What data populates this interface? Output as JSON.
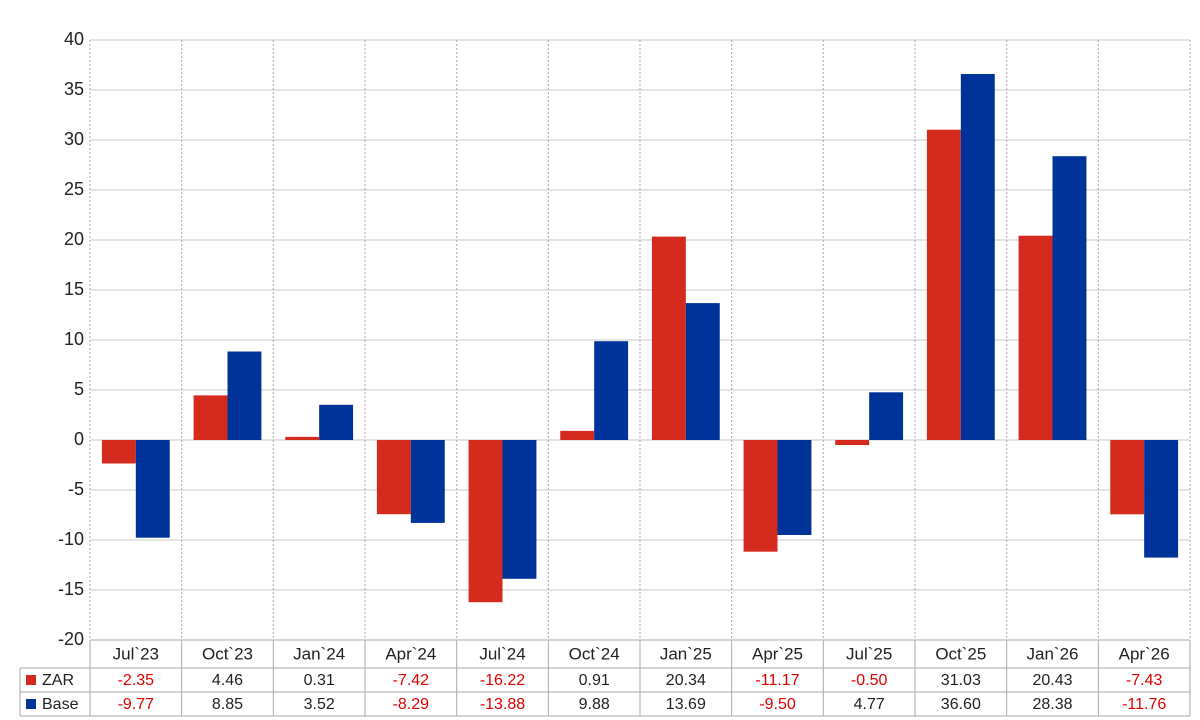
{
  "chart_data": {
    "type": "bar",
    "categories": [
      "Jul`23",
      "Oct`23",
      "Jan`24",
      "Apr`24",
      "Jul`24",
      "Oct`24",
      "Jan`25",
      "Apr`25",
      "Jul`25",
      "Oct`25",
      "Jan`26",
      "Apr`26"
    ],
    "series": [
      {
        "name": "ZAR",
        "color": "#d52b1e",
        "values": [
          -2.35,
          4.46,
          0.31,
          -7.42,
          -16.22,
          0.91,
          20.34,
          -11.17,
          -0.5,
          31.03,
          20.43,
          -7.43
        ],
        "value_labels": [
          "-2.35",
          "4.46",
          "0.31",
          "-7.42",
          "-16.22",
          "0.91",
          "20.34",
          "-11.17",
          "-0.50",
          "31.03",
          "20.43",
          "-7.43"
        ]
      },
      {
        "name": "Base",
        "color": "#003399",
        "values": [
          -9.77,
          8.85,
          3.52,
          -8.29,
          -13.88,
          9.88,
          13.69,
          -9.5,
          4.77,
          36.6,
          28.38,
          -11.76
        ],
        "value_labels": [
          "-9.77",
          "8.85",
          "3.52",
          "-8.29",
          "-13.88",
          "9.88",
          "13.69",
          "-9.50",
          "4.77",
          "36.60",
          "28.38",
          "-11.76"
        ]
      }
    ],
    "ylim": [
      -20,
      40
    ],
    "yticks": [
      -20,
      -15,
      -10,
      -5,
      0,
      5,
      10,
      15,
      20,
      25,
      30,
      35,
      40
    ],
    "grid": true
  }
}
